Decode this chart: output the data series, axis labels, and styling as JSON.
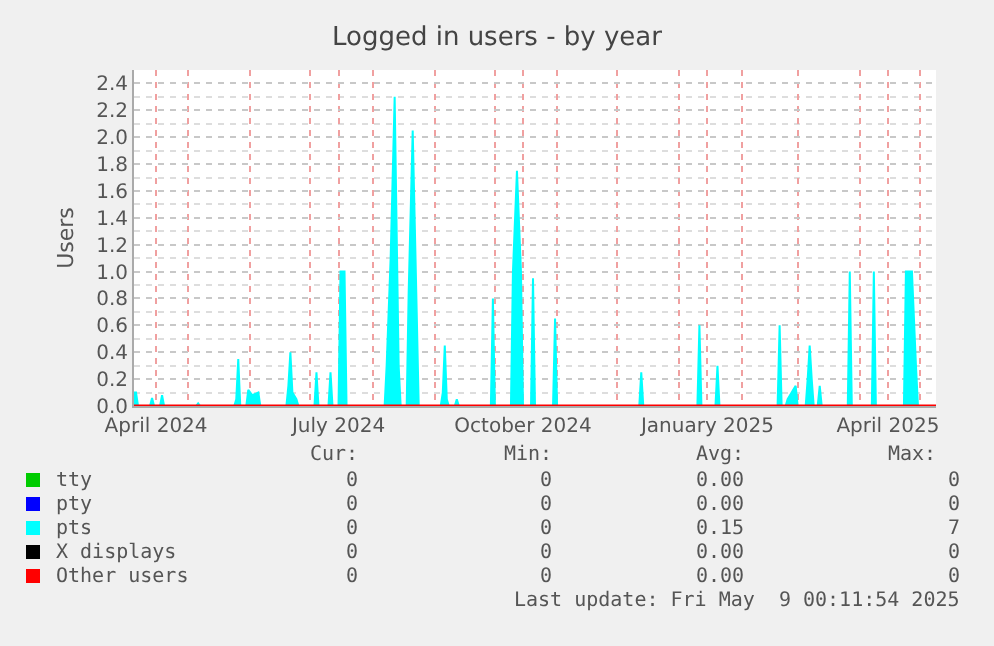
{
  "chart_data": {
    "type": "area",
    "title": "Logged in users - by year",
    "ylabel": "Users",
    "xlim": [
      "2024-04-04",
      "2025-05-09"
    ],
    "xticks": [
      {
        "value": "2024-04-15",
        "label": "April 2024"
      },
      {
        "value": "2024-05-01",
        "label": null
      },
      {
        "value": "2024-06-01",
        "label": null
      },
      {
        "value": "2024-07-01",
        "label": null
      },
      {
        "value": "2024-07-15",
        "label": "July 2024"
      },
      {
        "value": "2024-08-01",
        "label": null
      },
      {
        "value": "2024-09-01",
        "label": null
      },
      {
        "value": "2024-10-01",
        "label": null
      },
      {
        "value": "2024-10-15",
        "label": "October 2024"
      },
      {
        "value": "2024-11-01",
        "label": null
      },
      {
        "value": "2024-12-01",
        "label": null
      },
      {
        "value": "2025-01-01",
        "label": null
      },
      {
        "value": "2025-01-15",
        "label": "January 2025"
      },
      {
        "value": "2025-02-01",
        "label": null
      },
      {
        "value": "2025-03-01",
        "label": null
      },
      {
        "value": "2025-04-01",
        "label": null
      },
      {
        "value": "2025-04-15",
        "label": "April 2025"
      },
      {
        "value": "2025-05-01",
        "label": null
      }
    ],
    "ylim": [
      0,
      2.5
    ],
    "yticks": [
      {
        "value": 0.0,
        "label": "0.0"
      },
      {
        "value": 0.2,
        "label": "0.2"
      },
      {
        "value": 0.4,
        "label": "0.4"
      },
      {
        "value": 0.6,
        "label": "0.6"
      },
      {
        "value": 0.8,
        "label": "0.8"
      },
      {
        "value": 1.0,
        "label": "1.0"
      },
      {
        "value": 1.2,
        "label": "1.2"
      },
      {
        "value": 1.4,
        "label": "1.4"
      },
      {
        "value": 1.6,
        "label": "1.6"
      },
      {
        "value": 1.8,
        "label": "1.8"
      },
      {
        "value": 2.0,
        "label": "2.0"
      },
      {
        "value": 2.2,
        "label": "2.2"
      },
      {
        "value": 2.4,
        "label": "2.4"
      }
    ],
    "grid": true,
    "legend": "bottom",
    "series": [
      {
        "name": "tty",
        "color": "#00cc00"
      },
      {
        "name": "pty",
        "color": "#0000ff"
      },
      {
        "name": "pts",
        "color": "#00ffff",
        "x": [
          "2024-04-04",
          "2024-04-05",
          "2024-04-06",
          "2024-04-12",
          "2024-04-13",
          "2024-04-14",
          "2024-04-17",
          "2024-04-18",
          "2024-04-19",
          "2024-05-05",
          "2024-05-06",
          "2024-05-07",
          "2024-05-24",
          "2024-05-25",
          "2024-05-26",
          "2024-05-27",
          "2024-05-30",
          "2024-05-31",
          "2024-06-02",
          "2024-06-05",
          "2024-06-06",
          "2024-06-19",
          "2024-06-20",
          "2024-06-21",
          "2024-06-22",
          "2024-06-24",
          "2024-06-25",
          "2024-07-03",
          "2024-07-04",
          "2024-07-05",
          "2024-07-10",
          "2024-07-11",
          "2024-07-12",
          "2024-07-15",
          "2024-07-16",
          "2024-07-18",
          "2024-07-19",
          "2024-08-07",
          "2024-08-08",
          "2024-08-10",
          "2024-08-12",
          "2024-08-14",
          "2024-08-15",
          "2024-08-18",
          "2024-08-19",
          "2024-08-21",
          "2024-08-23",
          "2024-08-24",
          "2024-09-04",
          "2024-09-05",
          "2024-09-06",
          "2024-09-07",
          "2024-09-08",
          "2024-09-11",
          "2024-09-12",
          "2024-09-13",
          "2024-09-29",
          "2024-09-30",
          "2024-10-01",
          "2024-10-09",
          "2024-10-10",
          "2024-10-12",
          "2024-10-14",
          "2024-10-15",
          "2024-10-19",
          "2024-10-20",
          "2024-10-21",
          "2024-10-30",
          "2024-10-31",
          "2024-11-01",
          "2024-12-12",
          "2024-12-13",
          "2024-12-14",
          "2025-01-10",
          "2025-01-11",
          "2025-01-12",
          "2025-01-19",
          "2025-01-20",
          "2025-01-21",
          "2025-02-19",
          "2025-02-20",
          "2025-02-21",
          "2025-02-23",
          "2025-02-24",
          "2025-02-26",
          "2025-02-28",
          "2025-03-01",
          "2025-03-05",
          "2025-03-06",
          "2025-03-07",
          "2025-03-08",
          "2025-03-09",
          "2025-03-11",
          "2025-03-12",
          "2025-03-13",
          "2025-03-26",
          "2025-03-27",
          "2025-03-28",
          "2025-04-07",
          "2025-04-08",
          "2025-04-09",
          "2025-04-23",
          "2025-04-24",
          "2025-04-27",
          "2025-04-29",
          "2025-04-30",
          "2025-05-09"
        ],
        "values": [
          0.1,
          0.1,
          0,
          0,
          0.06,
          0,
          0,
          0.08,
          0,
          0,
          0.02,
          0,
          0,
          0.05,
          0.35,
          0,
          0,
          0.12,
          0.08,
          0.1,
          0,
          0,
          0.15,
          0.4,
          0.1,
          0.05,
          0,
          0,
          0.25,
          0,
          0,
          0.25,
          0,
          0,
          1.0,
          1.0,
          0,
          0,
          0.3,
          1.1,
          2.3,
          0.3,
          0,
          0,
          0.85,
          2.05,
          0.7,
          0,
          0,
          0.1,
          0.45,
          0.05,
          0,
          0,
          0.05,
          0,
          0,
          0.8,
          0,
          0,
          1.0,
          1.75,
          1.0,
          0,
          0,
          0.95,
          0,
          0,
          0.65,
          0,
          0,
          0.25,
          0,
          0,
          0.6,
          0,
          0,
          0.3,
          0,
          0,
          0.6,
          0,
          0,
          0.05,
          0.1,
          0.15,
          0,
          0,
          0.2,
          0.45,
          0.2,
          0,
          0,
          0.15,
          0,
          0,
          1.0,
          0,
          0,
          1.0,
          0,
          0,
          1.0,
          1.0,
          0.3,
          0,
          0
        ]
      },
      {
        "name": "X displays",
        "color": "#000000"
      },
      {
        "name": "Other users",
        "type": "line",
        "color": "#ff0000",
        "x": [
          "2024-04-04",
          "2025-05-09"
        ],
        "values": [
          0,
          0
        ]
      }
    ],
    "annotations": [
      "Cur:",
      "Min:",
      "Avg:",
      "Max:",
      "0",
      "0",
      "0.00",
      "0",
      "0",
      "0",
      "0.00",
      "0",
      "0",
      "0",
      "0.15",
      "7",
      "0",
      "0",
      "0.00",
      "0",
      "0",
      "0",
      "0.00",
      "0",
      "Last update: Fri May  9 00:11:54 2025"
    ]
  }
}
